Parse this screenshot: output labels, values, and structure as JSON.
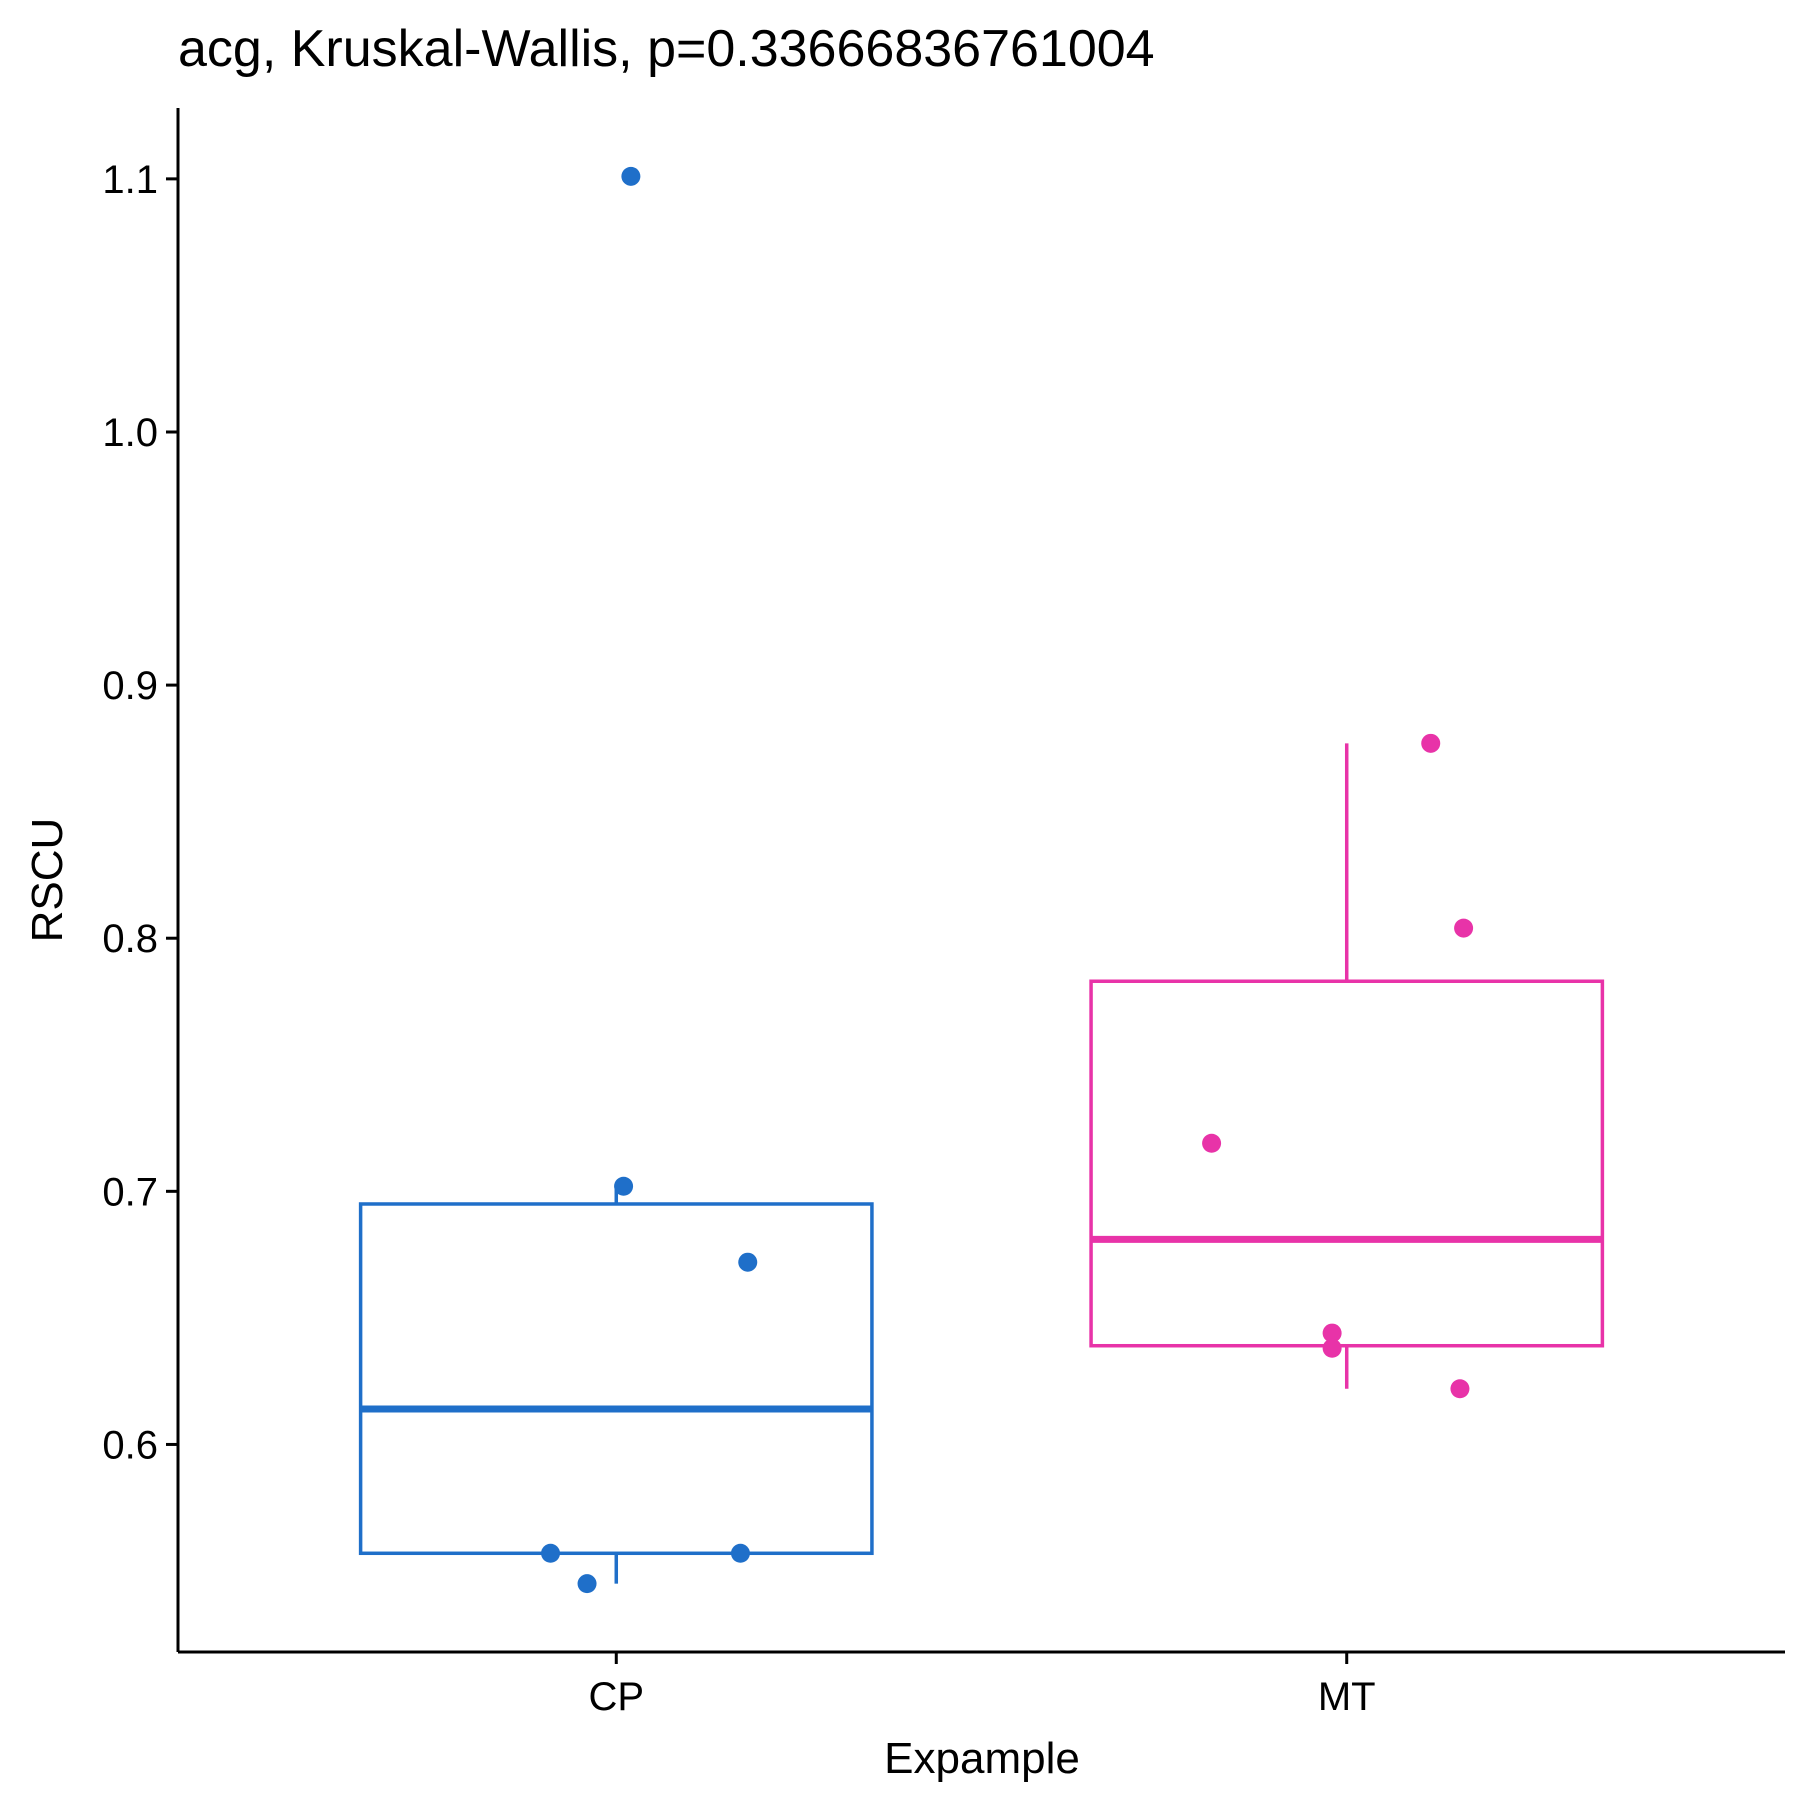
{
  "chart_data": {
    "type": "box",
    "title": "acg, Kruskal-Wallis, p=0.33666836761004",
    "xlabel": "Expample",
    "ylabel": "RSCU",
    "categories": [
      "CP",
      "MT"
    ],
    "ylim": [
      0.518,
      1.128
    ],
    "yticks": [
      0.6,
      0.7,
      0.8,
      0.9,
      1.0,
      1.1
    ],
    "ytick_labels": [
      "0.6",
      "0.7",
      "0.8",
      "0.9",
      "1.0",
      "1.1"
    ],
    "grid": false,
    "legend": "none",
    "groups": [
      {
        "name": "CP",
        "color": "#1f6fc9",
        "whisker_low": 0.545,
        "q1": 0.557,
        "median": 0.614,
        "q3": 0.695,
        "whisker_high": 0.702,
        "points": [
          {
            "jitter": 0.02,
            "y": 1.101
          },
          {
            "jitter": 0.01,
            "y": 0.702
          },
          {
            "jitter": 0.18,
            "y": 0.672
          },
          {
            "jitter": -0.09,
            "y": 0.557
          },
          {
            "jitter": 0.17,
            "y": 0.557
          },
          {
            "jitter": -0.04,
            "y": 0.545
          }
        ]
      },
      {
        "name": "MT",
        "color": "#e833a8",
        "whisker_low": 0.622,
        "q1": 0.639,
        "median": 0.681,
        "q3": 0.783,
        "whisker_high": 0.877,
        "points": [
          {
            "jitter": 0.115,
            "y": 0.877
          },
          {
            "jitter": 0.16,
            "y": 0.804
          },
          {
            "jitter": -0.185,
            "y": 0.719
          },
          {
            "jitter": -0.02,
            "y": 0.644
          },
          {
            "jitter": -0.02,
            "y": 0.638
          },
          {
            "jitter": 0.155,
            "y": 0.622
          }
        ]
      }
    ]
  }
}
